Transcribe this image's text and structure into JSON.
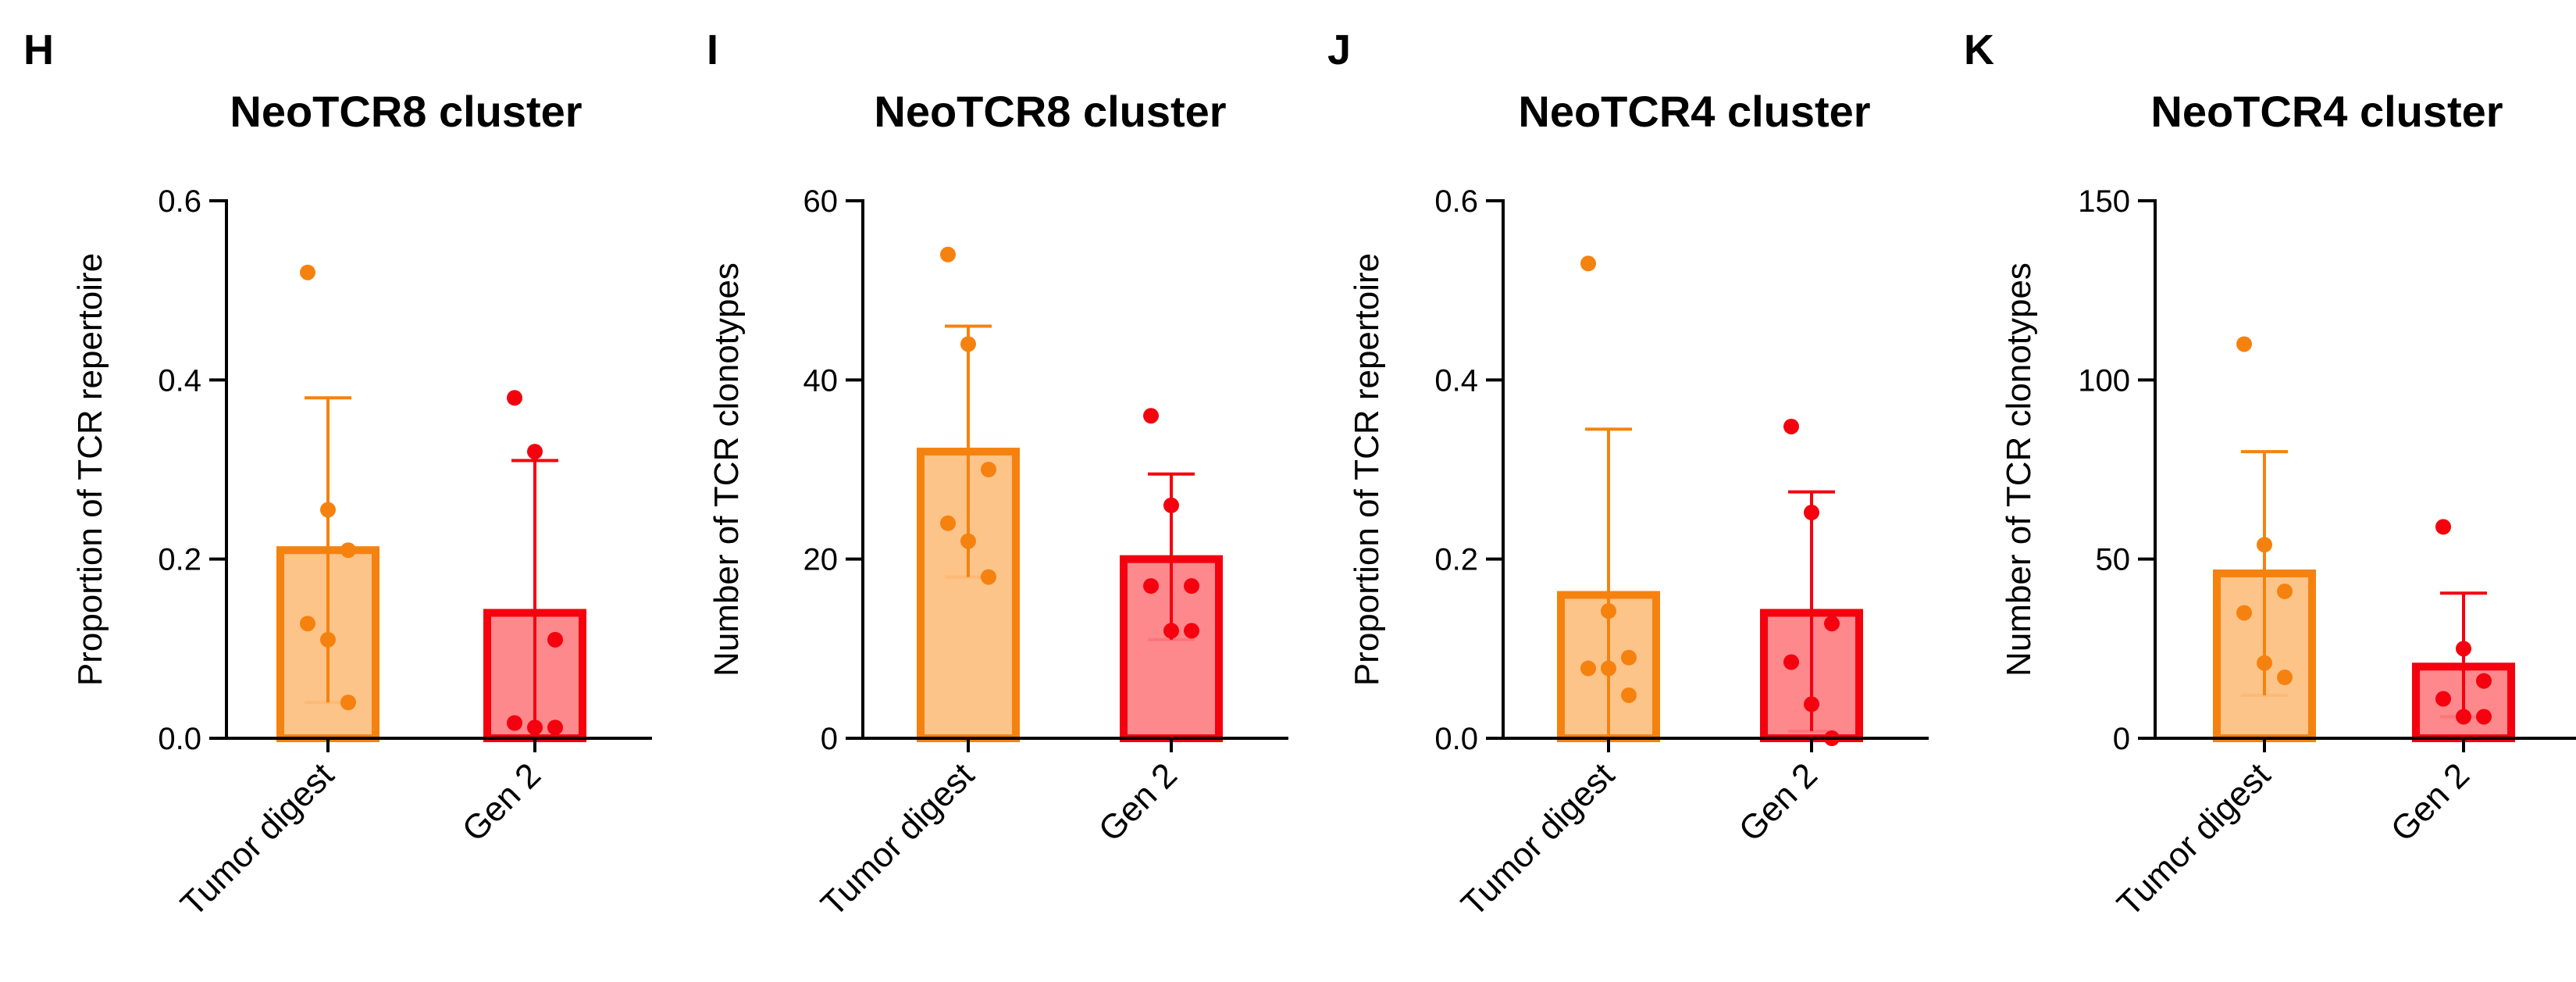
{
  "chart_data": [
    {
      "type": "bar",
      "panel": "H",
      "title": "NeoTCR8 cluster",
      "ylabel": "Proportion of TCR repertoire",
      "ylim": [
        0,
        0.6
      ],
      "yticks": [
        0,
        0.2,
        0.4,
        0.6
      ],
      "ytick_labels": [
        "0.0",
        "0.2",
        "0.4",
        "0.6"
      ],
      "categories": [
        "Tumor digest",
        "Gen 2"
      ],
      "values": [
        0.21,
        0.14
      ],
      "error_high": [
        0.38,
        0.31
      ],
      "error_low": [
        0.04,
        0.0
      ],
      "points": [
        [
          0.52,
          0.255,
          0.21,
          0.128,
          0.11,
          0.04
        ],
        [
          0.38,
          0.32,
          0.11,
          0.017,
          0.012,
          0.012
        ]
      ]
    },
    {
      "type": "bar",
      "panel": "I",
      "title": "NeoTCR8 cluster",
      "ylabel": "Number of TCR clonotypes",
      "ylim": [
        0,
        60
      ],
      "yticks": [
        0,
        20,
        40,
        60
      ],
      "ytick_labels": [
        "0",
        "20",
        "40",
        "60"
      ],
      "categories": [
        "Tumor digest",
        "Gen 2"
      ],
      "values": [
        32,
        20
      ],
      "error_high": [
        46,
        29.5
      ],
      "error_low": [
        18,
        11
      ],
      "points": [
        [
          54,
          44,
          30,
          24,
          22,
          18
        ],
        [
          36,
          26,
          17,
          17,
          12,
          12
        ]
      ]
    },
    {
      "type": "bar",
      "panel": "J",
      "title": "NeoTCR4 cluster",
      "ylabel": "Proportion of TCR repertoire",
      "ylim": [
        0,
        0.6
      ],
      "yticks": [
        0,
        0.2,
        0.4,
        0.6
      ],
      "ytick_labels": [
        "0.0",
        "0.2",
        "0.4",
        "0.6"
      ],
      "categories": [
        "Tumor digest",
        "Gen 2"
      ],
      "values": [
        0.16,
        0.14
      ],
      "error_high": [
        0.345,
        0.275
      ],
      "error_low": [
        0.0,
        0.008
      ],
      "points": [
        [
          0.53,
          0.142,
          0.09,
          0.078,
          0.078,
          0.048
        ],
        [
          0.348,
          0.252,
          0.128,
          0.085,
          0.038,
          0.0
        ]
      ]
    },
    {
      "type": "bar",
      "panel": "K",
      "title": "NeoTCR4 cluster",
      "ylabel": "Number of TCR clonotypes",
      "ylim": [
        0,
        150
      ],
      "yticks": [
        0,
        50,
        100,
        150
      ],
      "ytick_labels": [
        "0",
        "50",
        "100",
        "150"
      ],
      "categories": [
        "Tumor digest",
        "Gen 2"
      ],
      "values": [
        46,
        20
      ],
      "error_high": [
        80,
        40.5
      ],
      "error_low": [
        12,
        6
      ],
      "points": [
        [
          110,
          54,
          41,
          35,
          21,
          17
        ],
        [
          59,
          25,
          16,
          11,
          6,
          6
        ]
      ]
    }
  ],
  "colors": {
    "tumor_digest_fill": "#fdbf7f",
    "tumor_digest_stroke": "#f5820f",
    "gen2_fill": "#fd7f83",
    "gen2_stroke": "#f5000e",
    "axis": "#000000"
  }
}
